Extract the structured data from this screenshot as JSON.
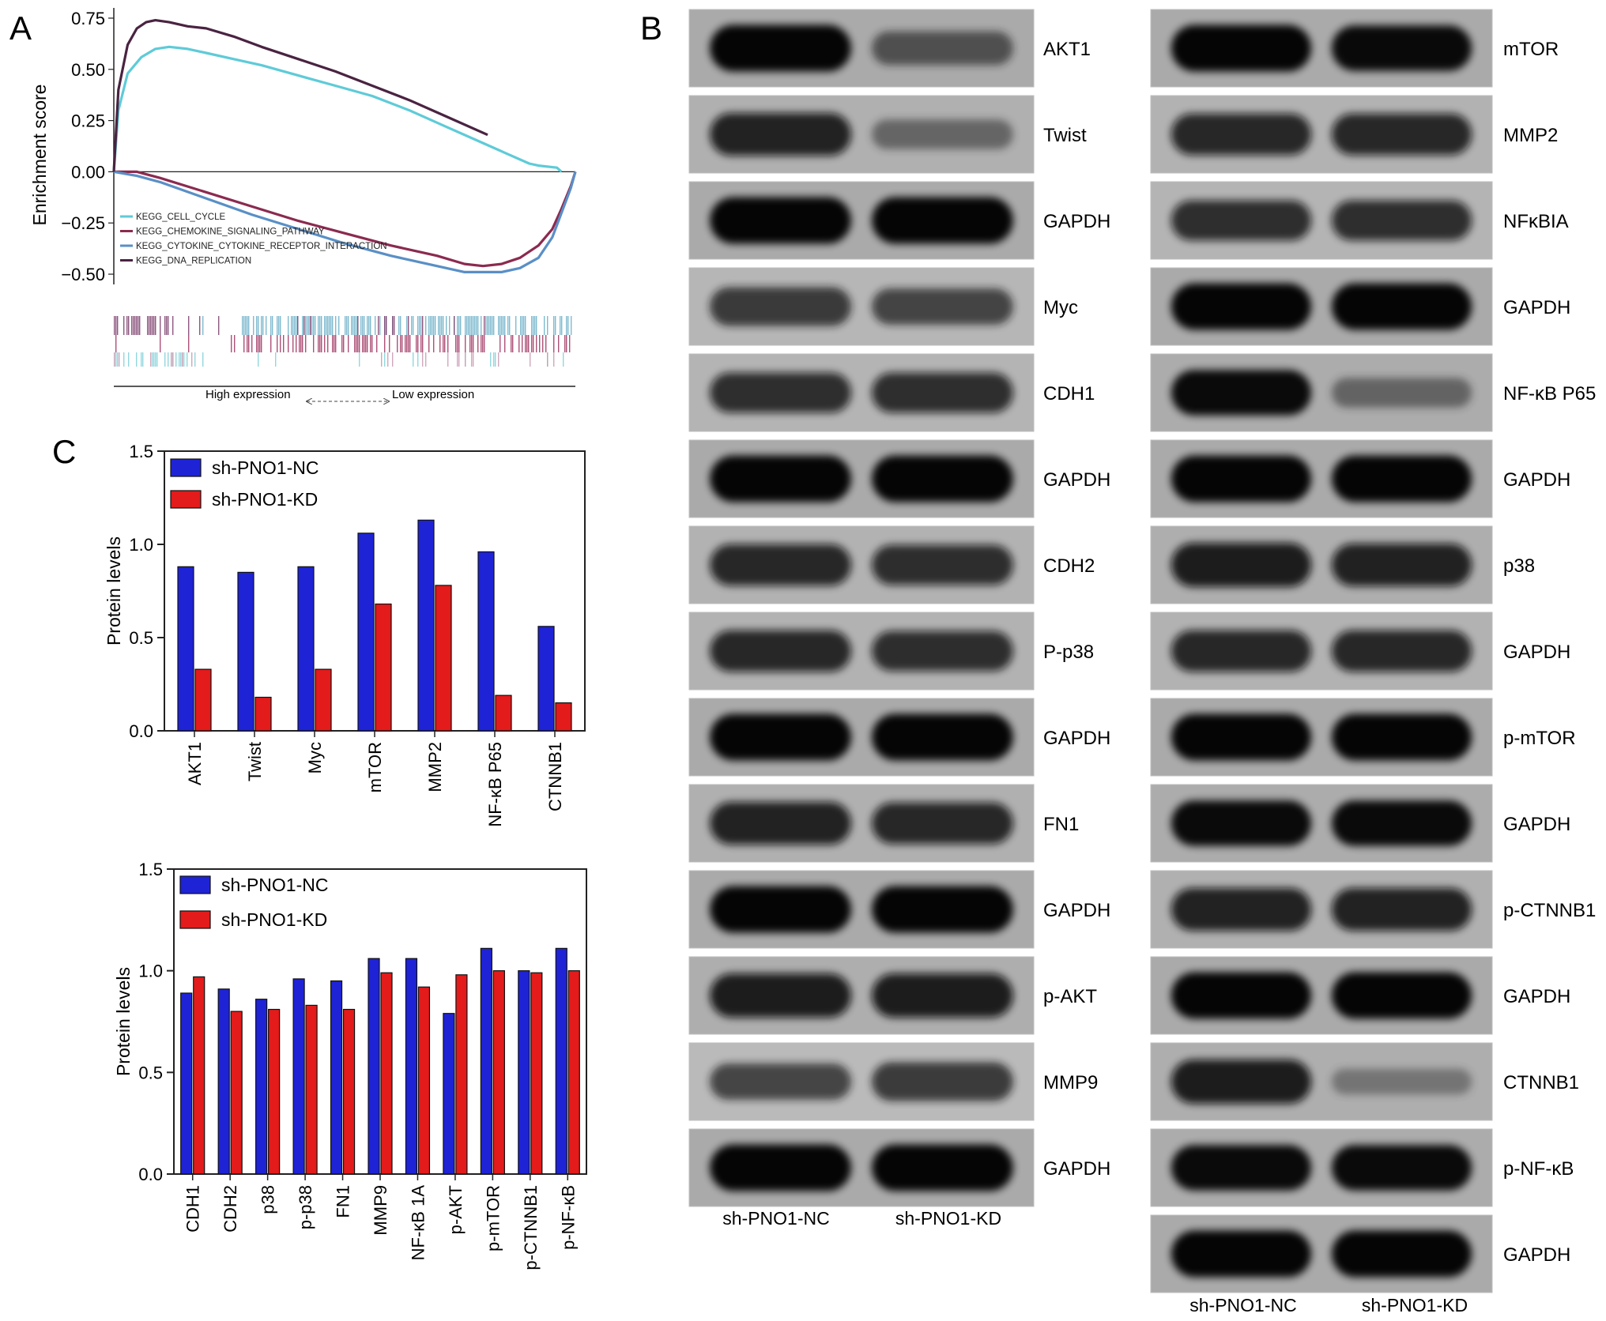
{
  "panel_labels": {
    "a": "A",
    "b": "B",
    "c": "C"
  },
  "chart_data": [
    {
      "type": "line",
      "panel": "A",
      "ylabel": "Enrichment score",
      "ylim": [
        -0.55,
        0.8
      ],
      "yticks": [
        "0.75",
        "0.50",
        "0.25",
        "0.00",
        "−0.25",
        "−0.50"
      ],
      "ytick_values": [
        0.75,
        0.5,
        0.25,
        0.0,
        -0.25,
        -0.5
      ],
      "x_range": [
        0,
        100
      ],
      "legend_placement": "bottom-left",
      "series": [
        {
          "name": "KEGG_CELL_CYCLE",
          "color": "#5ecbd8",
          "x": [
            0,
            1,
            3,
            6,
            9,
            12,
            16,
            20,
            26,
            32,
            40,
            48,
            56,
            64,
            72,
            80,
            86,
            90,
            92,
            96,
            97
          ],
          "y": [
            0.0,
            0.3,
            0.48,
            0.56,
            0.6,
            0.61,
            0.6,
            0.58,
            0.55,
            0.52,
            0.47,
            0.42,
            0.37,
            0.3,
            0.22,
            0.14,
            0.08,
            0.04,
            0.03,
            0.02,
            0.0
          ]
        },
        {
          "name": "KEGG_CHEMOKINE_SIGNALING_PATHWAY",
          "color": "#8b2a4f",
          "x": [
            0,
            5,
            10,
            20,
            30,
            40,
            50,
            60,
            70,
            76,
            80,
            84,
            88,
            92,
            95,
            97,
            99,
            100
          ],
          "y": [
            0.0,
            0.0,
            -0.03,
            -0.1,
            -0.17,
            -0.24,
            -0.3,
            -0.36,
            -0.41,
            -0.45,
            -0.46,
            -0.45,
            -0.42,
            -0.36,
            -0.28,
            -0.18,
            -0.07,
            0.0
          ]
        },
        {
          "name": "KEGG_CYTOKINE_CYTOKINE_RECEPTOR_INTERACTION",
          "color": "#5a8fc6",
          "x": [
            0,
            5,
            10,
            20,
            30,
            40,
            50,
            60,
            70,
            76,
            80,
            84,
            88,
            92,
            95,
            97,
            99,
            100
          ],
          "y": [
            0.0,
            -0.02,
            -0.05,
            -0.13,
            -0.21,
            -0.28,
            -0.35,
            -0.41,
            -0.46,
            -0.49,
            -0.49,
            -0.49,
            -0.47,
            -0.42,
            -0.32,
            -0.2,
            -0.08,
            0.0
          ]
        },
        {
          "name": "KEGG_DNA_REPLICATION",
          "color": "#4a2341",
          "x": [
            0,
            1,
            3,
            5,
            7,
            9,
            12,
            16,
            20,
            26,
            32,
            40,
            48,
            56,
            64,
            72,
            81
          ],
          "y": [
            0.0,
            0.4,
            0.62,
            0.7,
            0.73,
            0.74,
            0.73,
            0.71,
            0.7,
            0.66,
            0.61,
            0.55,
            0.49,
            0.42,
            0.35,
            0.27,
            0.18
          ]
        }
      ],
      "rank_caption": {
        "left": "High expression",
        "right": "Low expression"
      }
    },
    {
      "type": "bar",
      "panel": "C-top",
      "categories": [
        "AKT1",
        "Twist",
        "Myc",
        "mTOR",
        "MMP2",
        "NF-κB P65",
        "CTNNB1"
      ],
      "series": [
        {
          "name": "sh-PNO1-NC",
          "color": "#1f23d6",
          "values": [
            0.88,
            0.85,
            0.88,
            1.06,
            1.13,
            0.96,
            0.56
          ]
        },
        {
          "name": "sh-PNO1-KD",
          "color": "#e31b1b",
          "values": [
            0.33,
            0.18,
            0.33,
            0.68,
            0.78,
            0.19,
            0.15
          ]
        }
      ],
      "ylabel": "Protein levels",
      "ylim": [
        0,
        1.5
      ],
      "yticks": [
        "0.0",
        "0.5",
        "1.0",
        "1.5"
      ],
      "ytick_values": [
        0,
        0.5,
        1.0,
        1.5
      ],
      "legend_placement": "top-left"
    },
    {
      "type": "bar",
      "panel": "C-bottom",
      "categories": [
        "CDH1",
        "CDH2",
        "p38",
        "p-p38",
        "FN1",
        "MMP9",
        "NF-κB 1A",
        "p-AKT",
        "p-mTOR",
        "p-CTNNB1",
        "p-NF-κB"
      ],
      "series": [
        {
          "name": "sh-PNO1-NC",
          "color": "#1f23d6",
          "values": [
            0.89,
            0.91,
            0.86,
            0.96,
            0.95,
            1.06,
            1.06,
            0.79,
            1.11,
            1.0,
            1.11
          ]
        },
        {
          "name": "sh-PNO1-KD",
          "color": "#e31b1b",
          "values": [
            0.97,
            0.8,
            0.81,
            0.83,
            0.81,
            0.99,
            0.92,
            0.98,
            1.0,
            0.99,
            1.0
          ]
        }
      ],
      "ylabel": "Protein levels",
      "ylim": [
        0,
        1.5
      ],
      "yticks": [
        "0.0",
        "0.5",
        "1.0",
        "1.5"
      ],
      "ytick_values": [
        0,
        0.5,
        1.0,
        1.5
      ],
      "legend_placement": "top-left"
    }
  ],
  "western_blot": {
    "lane_labels": [
      "sh-PNO1-NC",
      "sh-PNO1-KD"
    ],
    "left_column": [
      {
        "label": "AKT1",
        "nc": 0.95,
        "kd": 0.45
      },
      {
        "label": "Twist",
        "nc": 0.8,
        "kd": 0.3
      },
      {
        "label": "GAPDH",
        "nc": 0.95,
        "kd": 0.95
      },
      {
        "label": "Myc",
        "nc": 0.65,
        "kd": 0.55
      },
      {
        "label": "CDH1",
        "nc": 0.7,
        "kd": 0.7
      },
      {
        "label": "GAPDH",
        "nc": 0.95,
        "kd": 0.95
      },
      {
        "label": "CDH2",
        "nc": 0.75,
        "kd": 0.7
      },
      {
        "label": "P-p38",
        "nc": 0.75,
        "kd": 0.7
      },
      {
        "label": "GAPDH",
        "nc": 0.95,
        "kd": 0.95
      },
      {
        "label": "FN1",
        "nc": 0.8,
        "kd": 0.75
      },
      {
        "label": "GAPDH",
        "nc": 0.95,
        "kd": 0.95
      },
      {
        "label": "p-AKT",
        "nc": 0.85,
        "kd": 0.85
      },
      {
        "label": "MMP9",
        "nc": 0.55,
        "kd": 0.65
      },
      {
        "label": "GAPDH",
        "nc": 0.95,
        "kd": 0.95
      }
    ],
    "right_column": [
      {
        "label": "mTOR",
        "nc": 0.95,
        "kd": 0.9
      },
      {
        "label": "MMP2",
        "nc": 0.75,
        "kd": 0.75
      },
      {
        "label": "NFκBIA",
        "nc": 0.7,
        "kd": 0.7
      },
      {
        "label": "GAPDH",
        "nc": 0.95,
        "kd": 0.95
      },
      {
        "label": "NF-κB P65",
        "nc": 0.9,
        "kd": 0.3
      },
      {
        "label": "GAPDH",
        "nc": 0.95,
        "kd": 0.95
      },
      {
        "label": "p38",
        "nc": 0.85,
        "kd": 0.8
      },
      {
        "label": "GAPDH",
        "nc": 0.75,
        "kd": 0.75
      },
      {
        "label": "p-mTOR",
        "nc": 0.95,
        "kd": 0.95
      },
      {
        "label": "GAPDH",
        "nc": 0.9,
        "kd": 0.9
      },
      {
        "label": "p-CTNNB1",
        "nc": 0.8,
        "kd": 0.8
      },
      {
        "label": "GAPDH",
        "nc": 0.95,
        "kd": 0.95
      },
      {
        "label": "CTNNB1",
        "nc": 0.85,
        "kd": 0.15
      },
      {
        "label": "p-NF-κB",
        "nc": 0.9,
        "kd": 0.9
      },
      {
        "label": "GAPDH",
        "nc": 0.95,
        "kd": 0.95
      }
    ]
  }
}
